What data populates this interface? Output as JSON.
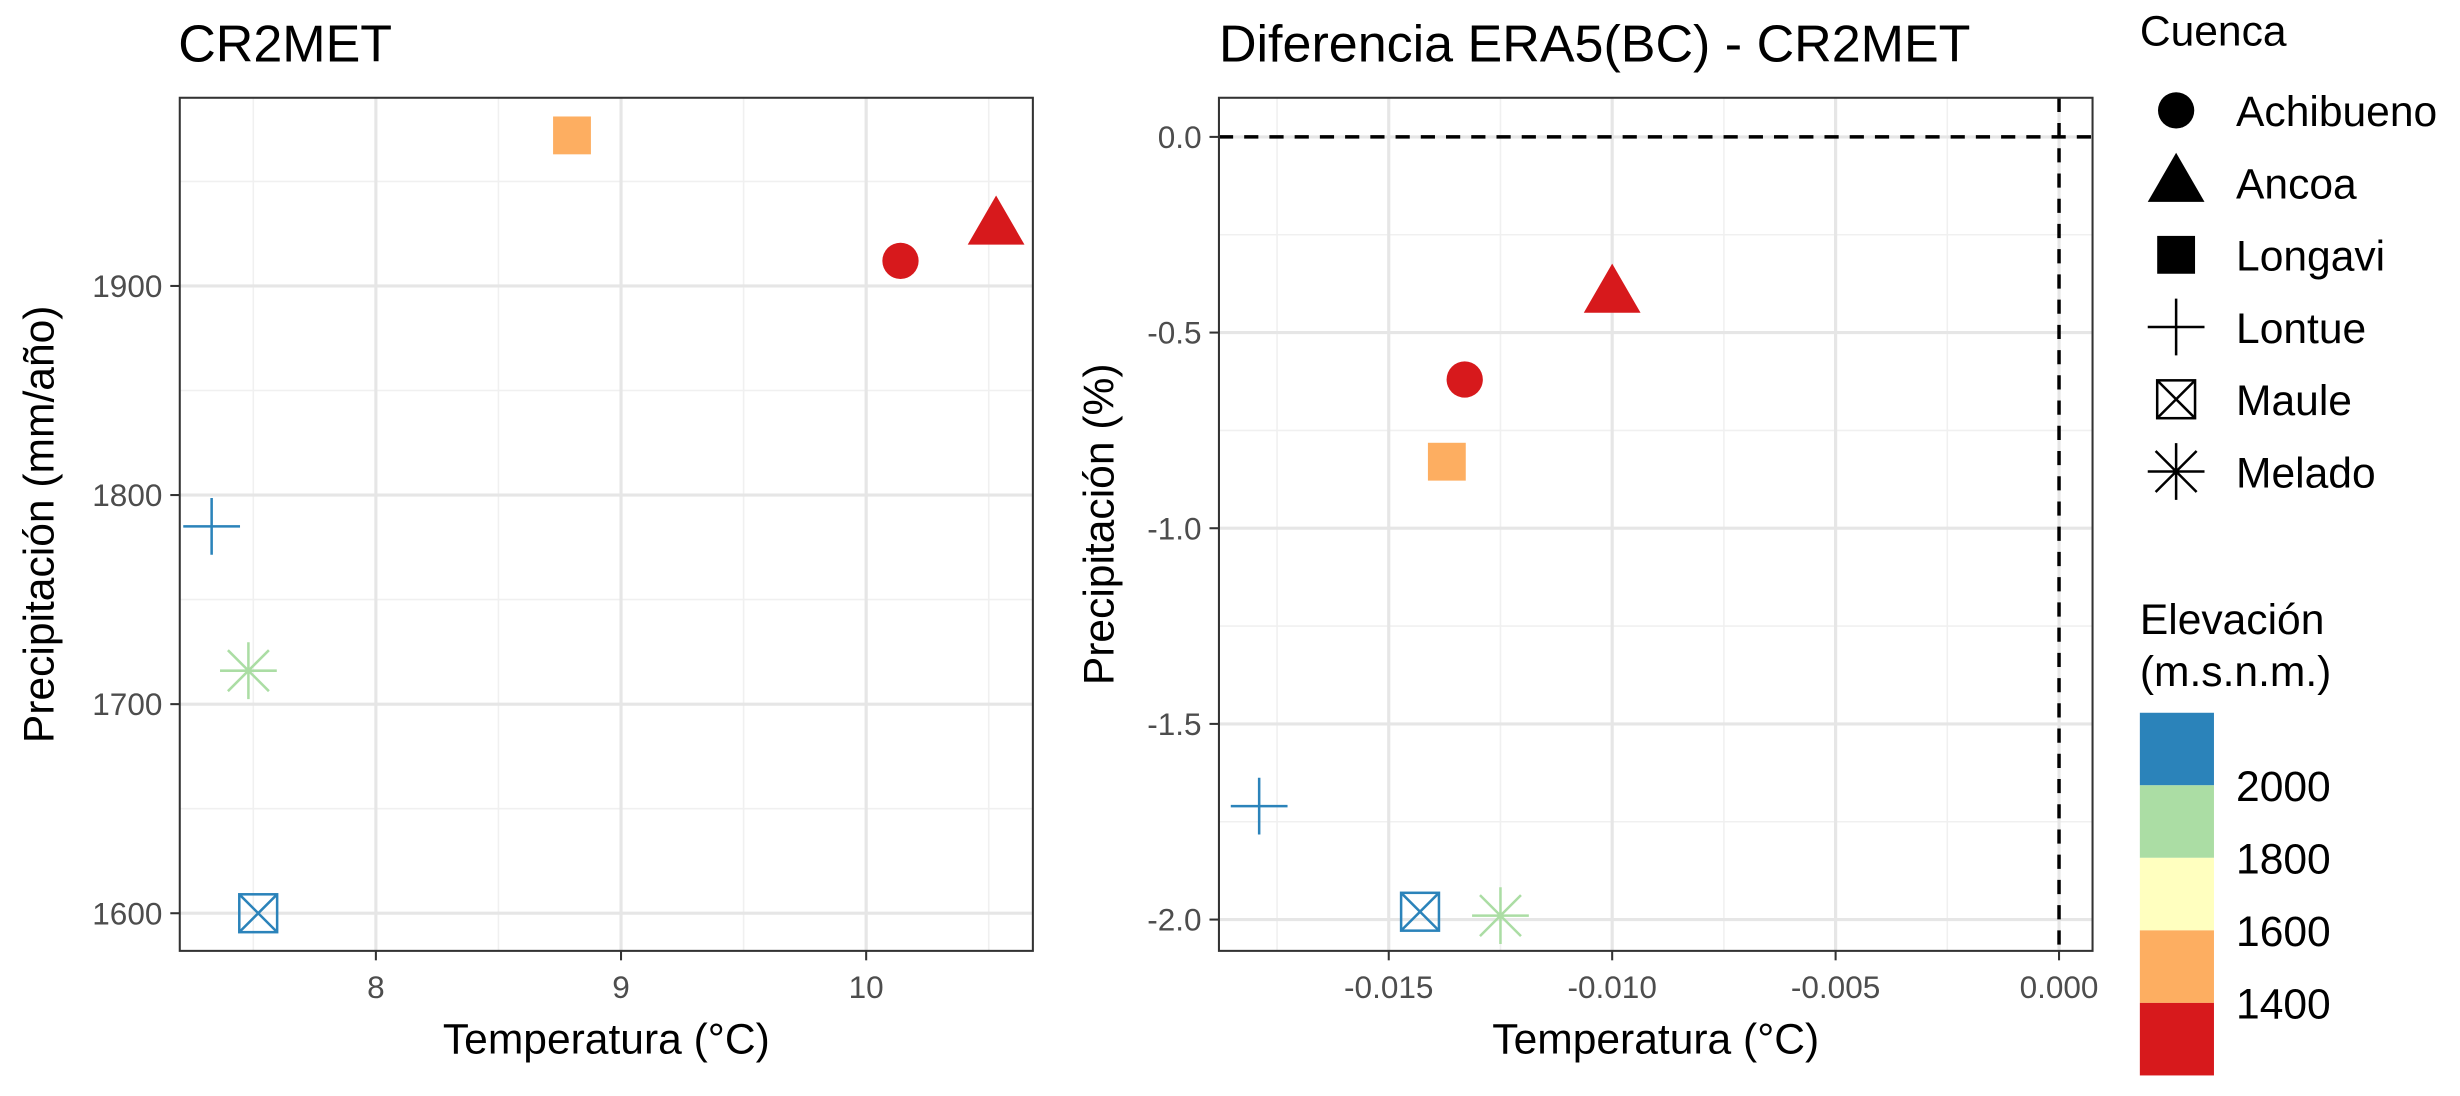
{
  "chart_data": [
    {
      "type": "scatter",
      "title": "CR2MET",
      "xlabel": "Temperatura (°C)",
      "ylabel": "Precipitación (mm/año)",
      "xlim": [
        7.2,
        10.68
      ],
      "ylim": [
        1582,
        1990
      ],
      "x_major_ticks": [
        8,
        9,
        10
      ],
      "x_minor_ticks": [
        7.5,
        8.5,
        9.5,
        10.5
      ],
      "y_major_ticks": [
        1600,
        1700,
        1800,
        1900
      ],
      "y_minor_ticks": [
        1650,
        1750,
        1850,
        1950
      ],
      "x_tick_labels": [
        "8",
        "9",
        "10"
      ],
      "y_tick_labels": [
        "1600",
        "1700",
        "1800",
        "1900"
      ],
      "grid": true,
      "reference_lines": [],
      "points": [
        {
          "basin": "Achibueno",
          "x": 10.14,
          "y": 1912,
          "shape": "circle",
          "color": "#d7191c"
        },
        {
          "basin": "Ancoa",
          "x": 10.53,
          "y": 1929,
          "shape": "triangle",
          "color": "#d7191c"
        },
        {
          "basin": "Longavi",
          "x": 8.8,
          "y": 1972,
          "shape": "square",
          "color": "#fdae61"
        },
        {
          "basin": "Lontue",
          "x": 7.33,
          "y": 1785,
          "shape": "plus",
          "color": "#2b83ba"
        },
        {
          "basin": "Maule",
          "x": 7.52,
          "y": 1600,
          "shape": "boxcross",
          "color": "#2b83ba"
        },
        {
          "basin": "Melado",
          "x": 7.48,
          "y": 1716,
          "shape": "asterisk",
          "color": "#abdda4"
        }
      ]
    },
    {
      "type": "scatter",
      "title": "Diferencia ERA5(BC) - CR2MET",
      "xlabel": "Temperatura (°C)",
      "ylabel": "Precipitación (%)",
      "xlim": [
        -0.0188,
        0.00075
      ],
      "ylim": [
        -2.08,
        0.1
      ],
      "x_major_ticks": [
        -0.015,
        -0.01,
        -0.005,
        0.0
      ],
      "x_minor_ticks": [
        -0.0175,
        -0.0125,
        -0.0075,
        -0.0025
      ],
      "y_major_ticks": [
        -2.0,
        -1.5,
        -1.0,
        -0.5,
        0.0
      ],
      "y_minor_ticks": [
        -1.75,
        -1.25,
        -0.75,
        -0.25
      ],
      "x_tick_labels": [
        "-0.015",
        "-0.010",
        "-0.005",
        "0.000"
      ],
      "y_tick_labels": [
        "-2.0",
        "-1.5",
        "-1.0",
        "-0.5",
        "0.0"
      ],
      "grid": true,
      "reference_lines": [
        {
          "axis": "y",
          "value": 0
        },
        {
          "axis": "x",
          "value": 0
        }
      ],
      "points": [
        {
          "basin": "Achibueno",
          "x": -0.0133,
          "y": -0.62,
          "shape": "circle",
          "color": "#d7191c"
        },
        {
          "basin": "Ancoa",
          "x": -0.01,
          "y": -0.4,
          "shape": "triangle",
          "color": "#d7191c"
        },
        {
          "basin": "Longavi",
          "x": -0.0137,
          "y": -0.83,
          "shape": "square",
          "color": "#fdae61"
        },
        {
          "basin": "Lontue",
          "x": -0.0179,
          "y": -1.71,
          "shape": "plus",
          "color": "#2b83ba"
        },
        {
          "basin": "Maule",
          "x": -0.0143,
          "y": -1.98,
          "shape": "boxcross",
          "color": "#2b83ba"
        },
        {
          "basin": "Melado",
          "x": -0.0125,
          "y": -1.99,
          "shape": "asterisk",
          "color": "#abdda4"
        }
      ]
    }
  ],
  "legend_shape": {
    "title": "Cuenca",
    "items": [
      {
        "label": "Achibueno",
        "shape": "circle"
      },
      {
        "label": "Ancoa",
        "shape": "triangle"
      },
      {
        "label": "Longavi",
        "shape": "square"
      },
      {
        "label": "Lontue",
        "shape": "plus"
      },
      {
        "label": "Maule",
        "shape": "boxcross"
      },
      {
        "label": "Melado",
        "shape": "asterisk"
      }
    ]
  },
  "legend_color": {
    "title_lines": [
      "Elevación",
      "(m.s.n.m.)"
    ],
    "colors": [
      "#2b83ba",
      "#abdda4",
      "#ffffbf",
      "#fdae61",
      "#d7191c"
    ],
    "labels": [
      "2000",
      "1800",
      "1600",
      "1400"
    ]
  }
}
